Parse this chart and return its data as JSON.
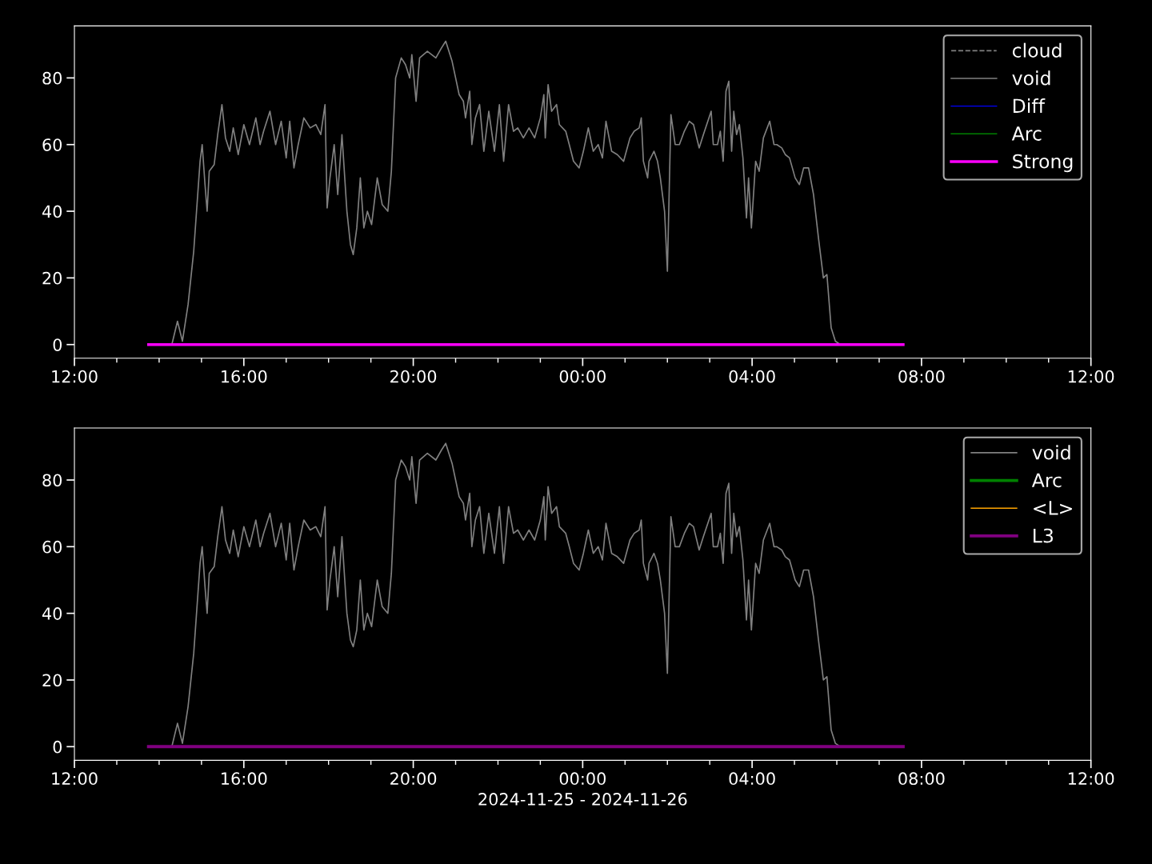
{
  "chart_data": [
    {
      "type": "line",
      "xlim": [
        "2024-11-25T12:00",
        "2024-11-26T12:00"
      ],
      "xticks": [
        {
          "value": "2024-11-25T12:00",
          "label": "12:00"
        },
        {
          "value": "2024-11-25T16:00",
          "label": "16:00"
        },
        {
          "value": "2024-11-25T20:00",
          "label": "20:00"
        },
        {
          "value": "2024-11-26T00:00",
          "label": "00:00"
        },
        {
          "value": "2024-11-26T04:00",
          "label": "04:00"
        },
        {
          "value": "2024-11-26T08:00",
          "label": "08:00"
        },
        {
          "value": "2024-11-26T12:00",
          "label": "12:00"
        }
      ],
      "ylim": [
        -4.1,
        95.6
      ],
      "yticks": [
        0,
        20,
        40,
        60,
        80
      ],
      "legend": "top right",
      "grid": false,
      "series": [
        {
          "name": "cloud",
          "color": "#808080",
          "line_style": "dashed",
          "values": [
            null
          ]
        },
        {
          "name": "void",
          "color": "#808080",
          "line_style": "solid",
          "x": [
            "2024-11-25T13:45",
            "2024-11-25T14:18",
            "2024-11-25T14:26",
            "2024-11-25T14:33",
            "2024-11-25T14:41",
            "2024-11-25T14:49",
            "2024-11-25T14:53",
            "2024-11-25T14:58",
            "2024-11-25T15:01",
            "2024-11-25T15:05",
            "2024-11-25T15:08",
            "2024-11-25T15:11",
            "2024-11-25T15:18",
            "2024-11-25T15:23",
            "2024-11-25T15:29",
            "2024-11-25T15:34",
            "2024-11-25T15:40",
            "2024-11-25T15:45",
            "2024-11-25T15:52",
            "2024-11-25T16:00",
            "2024-11-25T16:08",
            "2024-11-25T16:17",
            "2024-11-25T16:23",
            "2024-11-25T16:28",
            "2024-11-25T16:37",
            "2024-11-25T16:45",
            "2024-11-25T16:53",
            "2024-11-25T17:00",
            "2024-11-25T17:05",
            "2024-11-25T17:11",
            "2024-11-25T17:17",
            "2024-11-25T17:25",
            "2024-11-25T17:34",
            "2024-11-25T17:42",
            "2024-11-25T17:49",
            "2024-11-25T17:55",
            "2024-11-25T17:58",
            "2024-11-25T18:02",
            "2024-11-25T18:08",
            "2024-11-25T18:13",
            "2024-11-25T18:19",
            "2024-11-25T18:26",
            "2024-11-25T18:31",
            "2024-11-25T18:35",
            "2024-11-25T18:40",
            "2024-11-25T18:45",
            "2024-11-25T18:50",
            "2024-11-25T18:55",
            "2024-11-25T19:01",
            "2024-11-25T19:09",
            "2024-11-25T19:16",
            "2024-11-25T19:24",
            "2024-11-25T19:29",
            "2024-11-25T19:35",
            "2024-11-25T19:43",
            "2024-11-25T19:49",
            "2024-11-25T19:55",
            "2024-11-25T19:58",
            "2024-11-25T20:04",
            "2024-11-25T20:09",
            "2024-11-25T20:20",
            "2024-11-25T20:32",
            "2024-11-25T20:40",
            "2024-11-25T20:46",
            "2024-11-25T20:55",
            "2024-11-25T21:00",
            "2024-11-25T21:05",
            "2024-11-25T21:11",
            "2024-11-25T21:14",
            "2024-11-25T21:20",
            "2024-11-25T21:23",
            "2024-11-25T21:28",
            "2024-11-25T21:34",
            "2024-11-25T21:40",
            "2024-11-25T21:47",
            "2024-11-25T21:55",
            "2024-11-25T22:02",
            "2024-11-25T22:08",
            "2024-11-25T22:15",
            "2024-11-25T22:22",
            "2024-11-25T22:28",
            "2024-11-25T22:36",
            "2024-11-25T22:44",
            "2024-11-25T22:52",
            "2024-11-25T23:00",
            "2024-11-25T23:05",
            "2024-11-25T23:07",
            "2024-11-25T23:11",
            "2024-11-25T23:16",
            "2024-11-25T23:23",
            "2024-11-25T23:27",
            "2024-11-25T23:36",
            "2024-11-25T23:41",
            "2024-11-25T23:47",
            "2024-11-25T23:55",
            "2024-11-26T00:01",
            "2024-11-26T00:08",
            "2024-11-26T00:15",
            "2024-11-26T00:22",
            "2024-11-26T00:28",
            "2024-11-26T00:33",
            "2024-11-26T00:41",
            "2024-11-26T00:49",
            "2024-11-26T00:58",
            "2024-11-26T01:07",
            "2024-11-26T01:13",
            "2024-11-26T01:20",
            "2024-11-26T01:23",
            "2024-11-26T01:26",
            "2024-11-26T01:32",
            "2024-11-26T01:34",
            "2024-11-26T01:41",
            "2024-11-26T01:46",
            "2024-11-26T01:50",
            "2024-11-26T01:56",
            "2024-11-26T02:00",
            "2024-11-26T02:05",
            "2024-11-26T02:11",
            "2024-11-26T02:17",
            "2024-11-26T02:24",
            "2024-11-26T02:31",
            "2024-11-26T02:37",
            "2024-11-26T02:45",
            "2024-11-26T02:51",
            "2024-11-26T03:02",
            "2024-11-26T03:05",
            "2024-11-26T03:11",
            "2024-11-26T03:15",
            "2024-11-26T03:19",
            "2024-11-26T03:23",
            "2024-11-26T03:27",
            "2024-11-26T03:31",
            "2024-11-26T03:34",
            "2024-11-26T03:38",
            "2024-11-26T03:42",
            "2024-11-26T03:47",
            "2024-11-26T03:52",
            "2024-11-26T03:55",
            "2024-11-26T03:59",
            "2024-11-26T04:05",
            "2024-11-26T04:10",
            "2024-11-26T04:16",
            "2024-11-26T04:25",
            "2024-11-26T04:31",
            "2024-11-26T04:35",
            "2024-11-26T04:42",
            "2024-11-26T04:47",
            "2024-11-26T04:53",
            "2024-11-26T05:01",
            "2024-11-26T05:07",
            "2024-11-26T05:13",
            "2024-11-26T05:20",
            "2024-11-26T05:27",
            "2024-11-26T05:34",
            "2024-11-26T05:41",
            "2024-11-26T05:46",
            "2024-11-26T05:52",
            "2024-11-26T05:58",
            "2024-11-26T06:05",
            "2024-11-26T07:34"
          ],
          "values": [
            0,
            0,
            7,
            1,
            12,
            28,
            40,
            55,
            60,
            48,
            40,
            52,
            54,
            63,
            72,
            62,
            58,
            65,
            57,
            66,
            60,
            68,
            60,
            64,
            70,
            60,
            67,
            56,
            67,
            53,
            60,
            68,
            65,
            66,
            63,
            72,
            41,
            50,
            60,
            45,
            63,
            40,
            30,
            27,
            35,
            50,
            35,
            40,
            36,
            50,
            42,
            40,
            52,
            80,
            86,
            84,
            80,
            87,
            73,
            86,
            88,
            86,
            89,
            91,
            85,
            80,
            75,
            73,
            68,
            76,
            60,
            68,
            72,
            58,
            70,
            58,
            72,
            55,
            72,
            64,
            65,
            62,
            65,
            62,
            68,
            75,
            62,
            78,
            70,
            72,
            66,
            64,
            60,
            55,
            53,
            58,
            65,
            58,
            60,
            56,
            67,
            58,
            57,
            55,
            62,
            64,
            65,
            68,
            55,
            50,
            55,
            58,
            55,
            50,
            40,
            22,
            69,
            60,
            60,
            64,
            67,
            66,
            59,
            63,
            70,
            60,
            60,
            64,
            55,
            76,
            79,
            58,
            70,
            63,
            66,
            56,
            38,
            50,
            35,
            55,
            52,
            62,
            67,
            60,
            60,
            59,
            57,
            56,
            50,
            48,
            53,
            53,
            45,
            32,
            20,
            21,
            5,
            1,
            0,
            0
          ]
        },
        {
          "name": "Diff",
          "color": "#0000ff",
          "line_style": "solid",
          "values": [
            null
          ]
        },
        {
          "name": "Arc",
          "color": "#008000",
          "line_style": "solid",
          "values": [
            null
          ]
        },
        {
          "name": "Strong",
          "color": "#ff00ff",
          "line_style": "solid",
          "x": [
            "2024-11-25T13:45",
            "2024-11-26T07:34"
          ],
          "values": [
            0,
            0
          ]
        }
      ]
    },
    {
      "type": "line",
      "xlabel": "2024-11-25 - 2024-11-26",
      "xlim": [
        "2024-11-25T12:00",
        "2024-11-26T12:00"
      ],
      "xticks": [
        {
          "value": "2024-11-25T12:00",
          "label": "12:00"
        },
        {
          "value": "2024-11-25T16:00",
          "label": "16:00"
        },
        {
          "value": "2024-11-25T20:00",
          "label": "20:00"
        },
        {
          "value": "2024-11-26T00:00",
          "label": "00:00"
        },
        {
          "value": "2024-11-26T04:00",
          "label": "04:00"
        },
        {
          "value": "2024-11-26T08:00",
          "label": "08:00"
        },
        {
          "value": "2024-11-26T12:00",
          "label": "12:00"
        }
      ],
      "ylim": [
        -4.1,
        95.6
      ],
      "yticks": [
        0,
        20,
        40,
        60,
        80
      ],
      "legend": "top right",
      "grid": false,
      "series": [
        {
          "name": "void",
          "color": "#808080",
          "line_style": "solid",
          "x": [
            "2024-11-25T13:45",
            "2024-11-25T14:18",
            "2024-11-25T14:26",
            "2024-11-25T14:33",
            "2024-11-25T14:41",
            "2024-11-25T14:49",
            "2024-11-25T14:53",
            "2024-11-25T14:58",
            "2024-11-25T15:01",
            "2024-11-25T15:05",
            "2024-11-25T15:08",
            "2024-11-25T15:11",
            "2024-11-25T15:18",
            "2024-11-25T15:23",
            "2024-11-25T15:29",
            "2024-11-25T15:34",
            "2024-11-25T15:40",
            "2024-11-25T15:45",
            "2024-11-25T15:52",
            "2024-11-25T16:00",
            "2024-11-25T16:08",
            "2024-11-25T16:17",
            "2024-11-25T16:23",
            "2024-11-25T16:28",
            "2024-11-25T16:37",
            "2024-11-25T16:45",
            "2024-11-25T16:53",
            "2024-11-25T17:00",
            "2024-11-25T17:05",
            "2024-11-25T17:11",
            "2024-11-25T17:17",
            "2024-11-25T17:25",
            "2024-11-25T17:34",
            "2024-11-25T17:42",
            "2024-11-25T17:49",
            "2024-11-25T17:55",
            "2024-11-25T17:58",
            "2024-11-25T18:02",
            "2024-11-25T18:08",
            "2024-11-25T18:13",
            "2024-11-25T18:19",
            "2024-11-25T18:26",
            "2024-11-25T18:31",
            "2024-11-25T18:35",
            "2024-11-25T18:40",
            "2024-11-25T18:45",
            "2024-11-25T18:50",
            "2024-11-25T18:55",
            "2024-11-25T19:01",
            "2024-11-25T19:09",
            "2024-11-25T19:16",
            "2024-11-25T19:24",
            "2024-11-25T19:29",
            "2024-11-25T19:35",
            "2024-11-25T19:43",
            "2024-11-25T19:49",
            "2024-11-25T19:55",
            "2024-11-25T19:58",
            "2024-11-25T20:04",
            "2024-11-25T20:09",
            "2024-11-25T20:20",
            "2024-11-25T20:32",
            "2024-11-25T20:40",
            "2024-11-25T20:46",
            "2024-11-25T20:55",
            "2024-11-25T21:00",
            "2024-11-25T21:05",
            "2024-11-25T21:11",
            "2024-11-25T21:14",
            "2024-11-25T21:20",
            "2024-11-25T21:23",
            "2024-11-25T21:28",
            "2024-11-25T21:34",
            "2024-11-25T21:40",
            "2024-11-25T21:47",
            "2024-11-25T21:55",
            "2024-11-25T22:02",
            "2024-11-25T22:08",
            "2024-11-25T22:15",
            "2024-11-25T22:22",
            "2024-11-25T22:28",
            "2024-11-25T22:36",
            "2024-11-25T22:44",
            "2024-11-25T22:52",
            "2024-11-25T23:00",
            "2024-11-25T23:05",
            "2024-11-25T23:07",
            "2024-11-25T23:11",
            "2024-11-25T23:16",
            "2024-11-25T23:23",
            "2024-11-25T23:27",
            "2024-11-25T23:36",
            "2024-11-25T23:41",
            "2024-11-25T23:47",
            "2024-11-25T23:55",
            "2024-11-26T00:01",
            "2024-11-26T00:08",
            "2024-11-26T00:15",
            "2024-11-26T00:22",
            "2024-11-26T00:28",
            "2024-11-26T00:33",
            "2024-11-26T00:41",
            "2024-11-26T00:49",
            "2024-11-26T00:58",
            "2024-11-26T01:07",
            "2024-11-26T01:13",
            "2024-11-26T01:20",
            "2024-11-26T01:23",
            "2024-11-26T01:26",
            "2024-11-26T01:32",
            "2024-11-26T01:34",
            "2024-11-26T01:41",
            "2024-11-26T01:46",
            "2024-11-26T01:50",
            "2024-11-26T01:56",
            "2024-11-26T02:00",
            "2024-11-26T02:05",
            "2024-11-26T02:11",
            "2024-11-26T02:17",
            "2024-11-26T02:24",
            "2024-11-26T02:31",
            "2024-11-26T02:37",
            "2024-11-26T02:45",
            "2024-11-26T02:51",
            "2024-11-26T03:02",
            "2024-11-26T03:05",
            "2024-11-26T03:11",
            "2024-11-26T03:15",
            "2024-11-26T03:19",
            "2024-11-26T03:23",
            "2024-11-26T03:27",
            "2024-11-26T03:31",
            "2024-11-26T03:34",
            "2024-11-26T03:38",
            "2024-11-26T03:42",
            "2024-11-26T03:47",
            "2024-11-26T03:52",
            "2024-11-26T03:55",
            "2024-11-26T03:59",
            "2024-11-26T04:05",
            "2024-11-26T04:10",
            "2024-11-26T04:16",
            "2024-11-26T04:25",
            "2024-11-26T04:31",
            "2024-11-26T04:35",
            "2024-11-26T04:42",
            "2024-11-26T04:47",
            "2024-11-26T04:53",
            "2024-11-26T05:01",
            "2024-11-26T05:07",
            "2024-11-26T05:13",
            "2024-11-26T05:20",
            "2024-11-26T05:27",
            "2024-11-26T05:34",
            "2024-11-26T05:41",
            "2024-11-26T05:46",
            "2024-11-26T05:52",
            "2024-11-26T05:58",
            "2024-11-26T06:05",
            "2024-11-26T07:34"
          ],
          "values": [
            0,
            0,
            7,
            1,
            12,
            28,
            40,
            55,
            60,
            48,
            40,
            52,
            54,
            63,
            72,
            62,
            58,
            65,
            57,
            66,
            60,
            68,
            60,
            64,
            70,
            60,
            67,
            56,
            67,
            53,
            60,
            68,
            65,
            66,
            63,
            72,
            41,
            50,
            60,
            45,
            63,
            40,
            32,
            30,
            35,
            50,
            35,
            40,
            36,
            50,
            42,
            40,
            52,
            80,
            86,
            84,
            80,
            87,
            73,
            86,
            88,
            86,
            89,
            91,
            85,
            80,
            75,
            73,
            68,
            76,
            60,
            68,
            72,
            58,
            70,
            58,
            72,
            55,
            72,
            64,
            65,
            62,
            65,
            62,
            68,
            75,
            62,
            78,
            70,
            72,
            66,
            64,
            60,
            55,
            53,
            58,
            65,
            58,
            60,
            56,
            67,
            58,
            57,
            55,
            62,
            64,
            65,
            68,
            55,
            50,
            55,
            58,
            55,
            50,
            40,
            22,
            69,
            60,
            60,
            64,
            67,
            66,
            59,
            63,
            70,
            60,
            60,
            64,
            55,
            76,
            79,
            58,
            70,
            63,
            66,
            56,
            38,
            50,
            35,
            55,
            52,
            62,
            67,
            60,
            60,
            59,
            57,
            56,
            50,
            48,
            53,
            53,
            45,
            32,
            20,
            21,
            5,
            1,
            0,
            0
          ]
        },
        {
          "name": "Arc",
          "color": "#008000",
          "line_style": "solid",
          "values": [
            null
          ]
        },
        {
          "name": "<L>",
          "color": "#ffa500",
          "line_style": "solid",
          "values": [
            null
          ]
        },
        {
          "name": "L3",
          "color": "#800080",
          "line_style": "solid",
          "x": [
            "2024-11-25T13:45",
            "2024-11-26T07:34"
          ],
          "values": [
            0,
            0
          ]
        }
      ]
    }
  ]
}
